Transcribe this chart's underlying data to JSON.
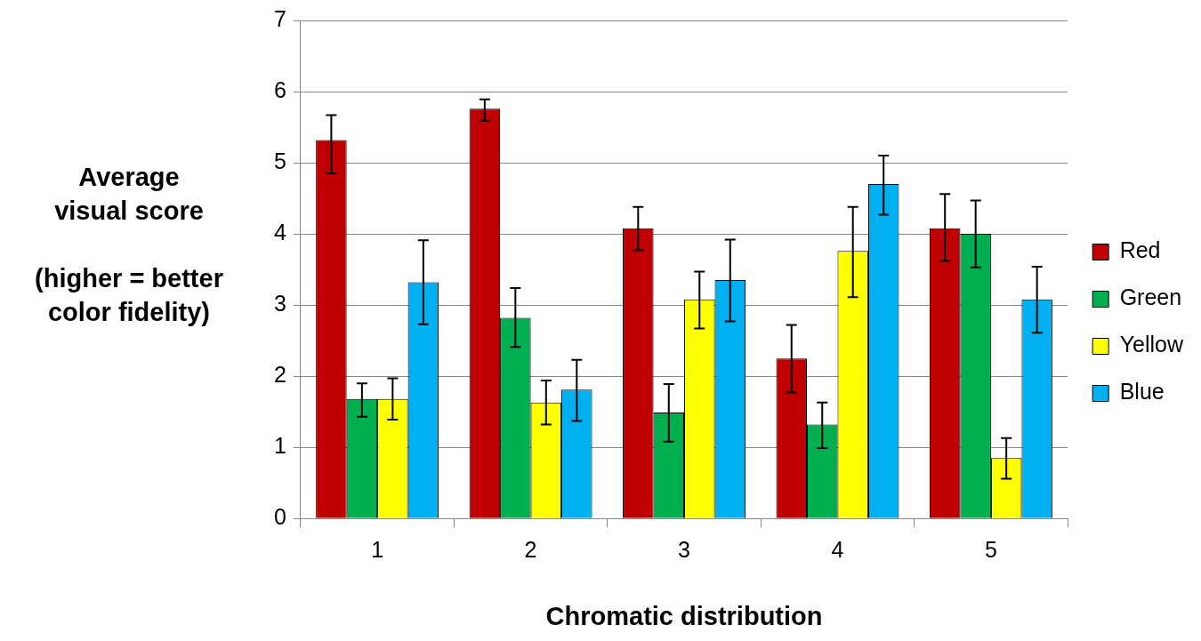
{
  "chart_data": {
    "type": "bar",
    "xlabel": "Chromatic distribution",
    "ylabel": "Average\nvisual score\n\n(higher = better\ncolor fidelity)",
    "categories": [
      "1",
      "2",
      "3",
      "4",
      "5"
    ],
    "series": [
      {
        "name": "Red",
        "color": "#c00000",
        "values": [
          5.32,
          5.76,
          4.08,
          2.25,
          4.08
        ],
        "errors": [
          [
            4.85,
            5.67
          ],
          [
            5.59,
            5.89
          ],
          [
            3.77,
            4.38
          ],
          [
            1.77,
            2.72
          ],
          [
            3.62,
            4.56
          ]
        ]
      },
      {
        "name": "Green",
        "color": "#00b050",
        "values": [
          1.68,
          2.82,
          1.49,
          1.32,
          4.0
        ],
        "errors": [
          [
            1.43,
            1.9
          ],
          [
            2.41,
            3.24
          ],
          [
            1.08,
            1.89
          ],
          [
            0.99,
            1.63
          ],
          [
            3.53,
            4.47
          ]
        ]
      },
      {
        "name": "Yellow",
        "color": "#ffff00",
        "values": [
          1.68,
          1.63,
          3.08,
          3.76,
          0.85
        ],
        "errors": [
          [
            1.39,
            1.97
          ],
          [
            1.32,
            1.94
          ],
          [
            2.67,
            3.47
          ],
          [
            3.11,
            4.38
          ],
          [
            0.56,
            1.13
          ]
        ]
      },
      {
        "name": "Blue",
        "color": "#00b0f0",
        "values": [
          3.32,
          1.81,
          3.35,
          4.7,
          3.08
        ],
        "errors": [
          [
            2.73,
            3.91
          ],
          [
            1.37,
            2.23
          ],
          [
            2.77,
            3.92
          ],
          [
            4.27,
            5.1
          ],
          [
            2.61,
            3.54
          ]
        ]
      }
    ],
    "ylim": [
      0,
      7
    ],
    "yticks": [
      0,
      1,
      2,
      3,
      4,
      5,
      6,
      7
    ],
    "grid": "y",
    "legend": "right"
  }
}
